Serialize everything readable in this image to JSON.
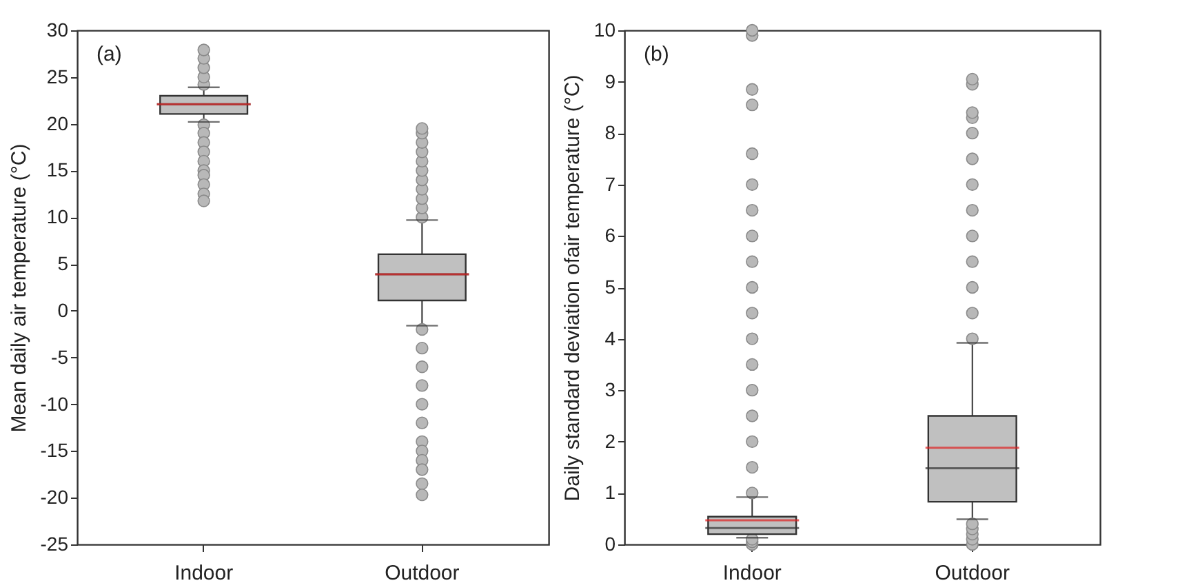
{
  "chart_data": [
    {
      "type": "box",
      "categories": [
        "Indoor",
        "Outdoor"
      ],
      "ylabel": "Mean daily air temperature (°C)",
      "annotations": [
        "(a)"
      ],
      "ylim": [
        -25,
        30
      ],
      "yticks": [
        -25,
        -20,
        -15,
        -10,
        -5,
        0,
        5,
        10,
        15,
        20,
        25,
        30
      ],
      "boxes": [
        {
          "low": 20.2,
          "q1": 21.05,
          "median": 22.1,
          "q3": 23,
          "high": 23.9,
          "mean": 22.1,
          "outliers": [
            24.2,
            25,
            26,
            27,
            27.9,
            19.9,
            19,
            18,
            17,
            16,
            15,
            14.5,
            13.5,
            12.5,
            11.75
          ]
        },
        {
          "low": -1.6,
          "q1": 1.1,
          "median": 3.9,
          "q3": 6.05,
          "high": 9.7,
          "mean": 3.9,
          "outliers": [
            10,
            11,
            12,
            13,
            14,
            15,
            16,
            17,
            18,
            19,
            19.5,
            -2,
            -4,
            -6,
            -8,
            -10,
            -12,
            -14,
            -15,
            -16,
            -17,
            -18.5,
            -19.7
          ]
        }
      ]
    },
    {
      "type": "box",
      "categories": [
        "Indoor",
        "Outdoor"
      ],
      "ylabel": "Daily standard deviation ofair temperature (°C)",
      "annotations": [
        "(b)"
      ],
      "ylim": [
        0,
        10
      ],
      "yticks": [
        0,
        1,
        2,
        3,
        4,
        5,
        6,
        7,
        8,
        9,
        10
      ],
      "boxes": [
        {
          "low": 0.13,
          "q1": 0.2,
          "median": 0.32,
          "q3": 0.54,
          "high": 0.92,
          "mean": 0.47,
          "outliers": [
            0,
            0.05,
            0.1,
            1,
            1.5,
            2,
            2.5,
            3,
            3.5,
            4,
            4.5,
            5,
            5.5,
            6,
            6.5,
            7,
            7.6,
            8.55,
            8.85,
            9.9,
            10
          ]
        },
        {
          "low": 0.49,
          "q1": 0.83,
          "median": 1.48,
          "q3": 2.5,
          "high": 3.92,
          "mean": 1.88,
          "outliers": [
            0,
            0.1,
            0.2,
            0.3,
            0.4,
            4,
            4.5,
            5,
            5.5,
            6,
            6.5,
            7,
            7.5,
            8,
            8.3,
            8.4,
            8.95,
            9.05
          ]
        }
      ]
    }
  ]
}
